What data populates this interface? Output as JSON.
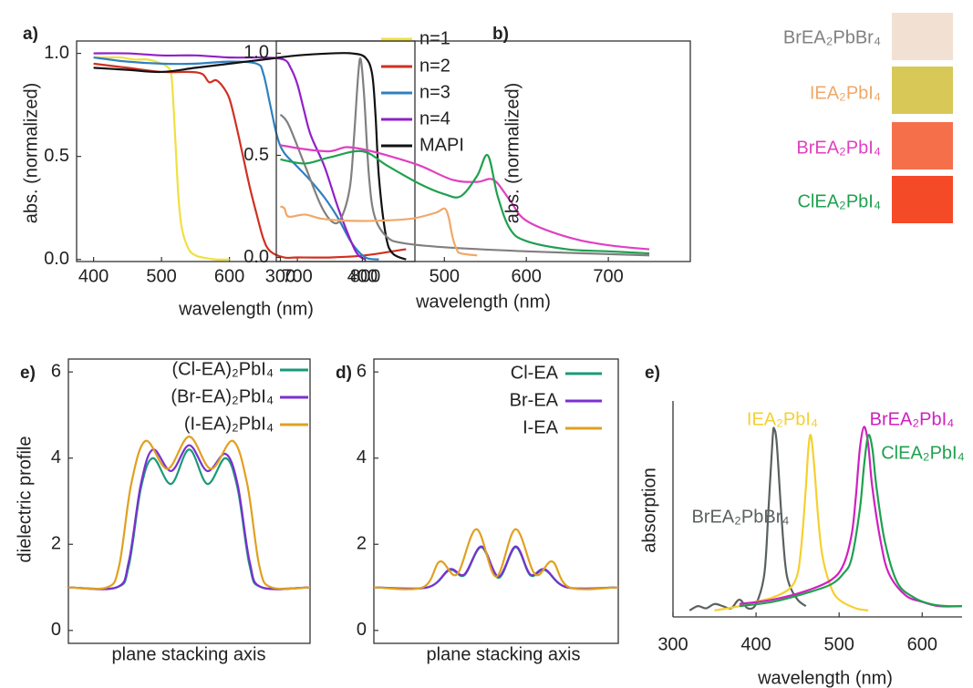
{
  "chart_data": [
    {
      "type": "line",
      "panel_label": "a)",
      "x_label": "wavelength (nm)",
      "y_label": "abs.  (normalized)",
      "xlim": [
        375,
        873
      ],
      "xticks": [
        400,
        500,
        600,
        700,
        800
      ],
      "ylim": [
        -0.01,
        1.06
      ],
      "yticks": [
        {
          "value": 0,
          "label": "0.0"
        },
        {
          "value": 0.5,
          "label": "0.5"
        },
        {
          "value": 1,
          "label": "1.0"
        }
      ],
      "series": [
        {
          "name": "n=1",
          "color": "#f0e040",
          "x": [
            400,
            420,
            440,
            460,
            480,
            500,
            510,
            515,
            520,
            525,
            530,
            540,
            550,
            560,
            580,
            600
          ],
          "values": [
            0.98,
            0.98,
            0.98,
            0.97,
            0.97,
            0.95,
            0.93,
            0.88,
            0.6,
            0.3,
            0.15,
            0.05,
            0.02,
            0.01,
            0,
            0
          ]
        },
        {
          "name": "n=2",
          "color": "#d03020",
          "x": [
            400,
            450,
            500,
            540,
            560,
            570,
            580,
            590,
            600,
            610,
            620,
            630,
            640,
            650,
            660,
            680,
            700,
            750,
            800,
            860
          ],
          "values": [
            0.95,
            0.93,
            0.91,
            0.91,
            0.9,
            0.86,
            0.87,
            0.84,
            0.78,
            0.65,
            0.5,
            0.35,
            0.22,
            0.1,
            0.04,
            0.01,
            0.01,
            0.01,
            0.02,
            0.05
          ]
        },
        {
          "name": "n=3",
          "color": "#2e80c0",
          "x": [
            400,
            450,
            500,
            550,
            600,
            640,
            650,
            660,
            670,
            680,
            700,
            720,
            740,
            760,
            780,
            800,
            820
          ],
          "values": [
            0.98,
            0.96,
            0.95,
            0.95,
            0.96,
            0.95,
            0.9,
            0.75,
            0.6,
            0.52,
            0.45,
            0.38,
            0.3,
            0.2,
            0.08,
            0.01,
            0
          ]
        },
        {
          "name": "n=4",
          "color": "#9020c8",
          "x": [
            400,
            450,
            500,
            550,
            600,
            650,
            680,
            690,
            700,
            710,
            720,
            740,
            760,
            780,
            790,
            800
          ],
          "values": [
            1,
            1,
            0.99,
            0.99,
            0.98,
            0.98,
            0.97,
            0.93,
            0.85,
            0.72,
            0.6,
            0.45,
            0.25,
            0.08,
            0.02,
            0
          ]
        },
        {
          "name": "MAPI",
          "color": "#111111",
          "x": [
            400,
            450,
            500,
            550,
            600,
            650,
            700,
            750,
            780,
            800,
            810,
            815,
            820,
            830,
            840,
            860
          ],
          "values": [
            0.93,
            0.92,
            0.91,
            0.93,
            0.95,
            0.97,
            0.99,
            1,
            1,
            0.98,
            0.9,
            0.7,
            0.4,
            0.12,
            0.03,
            0
          ]
        }
      ]
    },
    {
      "type": "line",
      "panel_label": "b)",
      "x_label": "wavelength (nm)",
      "y_label": "abs.  (normalized)",
      "xlim": [
        295,
        800
      ],
      "xticks": [
        300,
        400,
        500,
        600,
        700
      ],
      "ylim": [
        -0.02,
        1.06
      ],
      "yticks": [
        {
          "value": 0,
          "label": "0.0"
        },
        {
          "value": 0.5,
          "label": "0.5"
        },
        {
          "value": 1,
          "label": "1.0"
        }
      ],
      "series": [
        {
          "name": "BrEA₂PbBr₄",
          "color": "#808080",
          "x": [
            300,
            310,
            330,
            350,
            365,
            375,
            385,
            390,
            395,
            398,
            402,
            408,
            415,
            430,
            450,
            500,
            600,
            750
          ],
          "values": [
            0.7,
            0.65,
            0.45,
            0.25,
            0.17,
            0.2,
            0.35,
            0.6,
            0.9,
            0.97,
            0.8,
            0.4,
            0.2,
            0.1,
            0.07,
            0.05,
            0.03,
            0.01
          ]
        },
        {
          "name": "IEA₂PbI₄",
          "color": "#f0a868",
          "x": [
            300,
            305,
            310,
            330,
            350,
            380,
            420,
            460,
            490,
            500,
            505,
            510,
            515,
            520,
            540
          ],
          "values": [
            0.25,
            0.24,
            0.2,
            0.21,
            0.19,
            0.18,
            0.18,
            0.19,
            0.22,
            0.24,
            0.2,
            0.1,
            0.04,
            0.02,
            0.01
          ]
        },
        {
          "name": "BrEA₂PbI₄",
          "color": "#e040c0",
          "x": [
            300,
            330,
            360,
            380,
            400,
            430,
            470,
            510,
            540,
            560,
            580,
            600,
            650,
            700,
            750
          ],
          "values": [
            0.55,
            0.53,
            0.52,
            0.54,
            0.53,
            0.5,
            0.45,
            0.38,
            0.37,
            0.38,
            0.28,
            0.18,
            0.1,
            0.06,
            0.04
          ]
        },
        {
          "name": "ClEA₂PbI₄",
          "color": "#20a050",
          "x": [
            300,
            330,
            360,
            400,
            430,
            470,
            500,
            520,
            540,
            553,
            565,
            580,
            600,
            650,
            700,
            750
          ],
          "values": [
            0.48,
            0.46,
            0.49,
            0.52,
            0.45,
            0.36,
            0.31,
            0.3,
            0.4,
            0.5,
            0.3,
            0.14,
            0.08,
            0.04,
            0.03,
            0.02
          ]
        }
      ]
    },
    {
      "type": "line",
      "panel_label": "e)",
      "x_label": "plane stacking axis",
      "y_label": "dielectric profile",
      "xlim": [
        0,
        100
      ],
      "ylim": [
        -0.3,
        6.3
      ],
      "yticks": [
        0,
        2,
        4,
        6
      ],
      "series": [
        {
          "name": "(Cl-EA)₂PbI₄",
          "color": "#1a9a7a",
          "x": [
            0,
            20,
            25,
            30,
            35,
            42.5,
            50,
            57.5,
            65,
            70,
            75,
            80,
            100
          ],
          "values": [
            1,
            1,
            1.5,
            3.3,
            4.0,
            3.4,
            4.2,
            3.4,
            4.0,
            3.3,
            1.5,
            1,
            1
          ]
        },
        {
          "name": "(Br-EA)₂PbI₄",
          "color": "#7a30d0",
          "x": [
            0,
            20,
            25,
            30,
            35,
            42.5,
            50,
            57.5,
            65,
            70,
            75,
            80,
            100
          ],
          "values": [
            1,
            1,
            1.6,
            3.4,
            4.2,
            3.7,
            4.3,
            3.7,
            4.1,
            3.4,
            1.6,
            1,
            1
          ]
        },
        {
          "name": "(I-EA)₂PbI₄",
          "color": "#e0a020",
          "x": [
            0,
            16,
            21,
            26,
            32,
            41,
            50,
            59,
            68,
            74,
            79,
            84,
            100
          ],
          "values": [
            1,
            1,
            1.5,
            3.4,
            4.4,
            3.75,
            4.5,
            3.75,
            4.4,
            3.4,
            1.5,
            1,
            1
          ]
        }
      ]
    },
    {
      "type": "line",
      "panel_label": "d)",
      "x_label": "plane stacking axis",
      "xlim": [
        0,
        100
      ],
      "ylim": [
        -0.3,
        6.3
      ],
      "yticks": [
        0,
        2,
        4,
        6
      ],
      "series": [
        {
          "name": "Cl-EA",
          "color": "#1a9a7a",
          "x": [
            0,
            22,
            31,
            37,
            44,
            51,
            58,
            64,
            70,
            79,
            100
          ],
          "values": [
            1,
            1,
            1.4,
            1.28,
            1.93,
            1.22,
            1.93,
            1.28,
            1.4,
            1,
            1
          ]
        },
        {
          "name": "Br-EA",
          "color": "#7a30d0",
          "x": [
            0,
            22,
            31,
            37,
            44,
            51,
            58,
            64,
            70,
            79,
            100
          ],
          "values": [
            1,
            1,
            1.42,
            1.3,
            1.95,
            1.25,
            1.95,
            1.3,
            1.42,
            1,
            1
          ]
        },
        {
          "name": "I-EA",
          "color": "#e0a020",
          "x": [
            0,
            20,
            27,
            34,
            42,
            50,
            58,
            66,
            73,
            80,
            100
          ],
          "values": [
            1,
            1,
            1.6,
            1.3,
            2.35,
            1.25,
            2.35,
            1.3,
            1.6,
            1,
            1
          ]
        }
      ]
    },
    {
      "type": "line",
      "panel_label": "e)",
      "x_label": "wavelength (nm)",
      "y_label": "absorption",
      "xlim": [
        300,
        648
      ],
      "xticks": [
        300,
        400,
        500,
        600
      ],
      "ylim": [
        0,
        1
      ],
      "series": [
        {
          "name": "BrEA₂PbBr₄",
          "color": "#5a6060",
          "x": [
            320,
            330,
            340,
            350,
            360,
            370,
            380,
            390,
            400,
            410,
            415,
            420,
            422,
            425,
            430,
            435,
            440,
            450,
            460
          ],
          "values": [
            0.03,
            0.05,
            0.04,
            0.06,
            0.05,
            0.04,
            0.08,
            0.04,
            0.06,
            0.2,
            0.5,
            0.83,
            0.87,
            0.8,
            0.5,
            0.25,
            0.15,
            0.08,
            0.05
          ]
        },
        {
          "name": "IEA₂PbI₄",
          "color": "#f5d030",
          "x": [
            350,
            380,
            400,
            420,
            440,
            450,
            455,
            460,
            463,
            466,
            470,
            475,
            480,
            490,
            500,
            520,
            535
          ],
          "values": [
            0.03,
            0.05,
            0.07,
            0.09,
            0.13,
            0.2,
            0.35,
            0.6,
            0.78,
            0.84,
            0.7,
            0.45,
            0.28,
            0.14,
            0.08,
            0.04,
            0.03
          ]
        },
        {
          "name": "BrEA₂PbI₄",
          "color": "#d020c0",
          "x": [
            380,
            420,
            460,
            490,
            505,
            515,
            520,
            525,
            530,
            535,
            540,
            550,
            560,
            580,
            600,
            620,
            648
          ],
          "values": [
            0.06,
            0.08,
            0.12,
            0.17,
            0.24,
            0.38,
            0.55,
            0.78,
            0.88,
            0.8,
            0.6,
            0.35,
            0.2,
            0.1,
            0.07,
            0.05,
            0.05
          ]
        },
        {
          "name": "ClEA₂PbI₄",
          "color": "#20a050",
          "x": [
            380,
            420,
            460,
            490,
            505,
            515,
            525,
            530,
            535,
            540,
            545,
            555,
            570,
            590,
            610,
            630,
            648
          ],
          "values": [
            0.05,
            0.07,
            0.11,
            0.15,
            0.2,
            0.27,
            0.5,
            0.7,
            0.84,
            0.78,
            0.6,
            0.35,
            0.16,
            0.09,
            0.06,
            0.05,
            0.05
          ]
        }
      ]
    }
  ]
}
